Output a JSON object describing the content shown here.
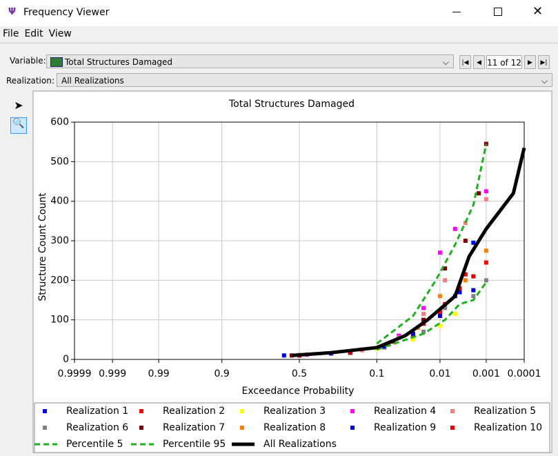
{
  "window": {
    "title": "Frequency Viewer"
  },
  "menu": [
    "File",
    "Edit",
    "View"
  ],
  "controls": {
    "variable_label": "Variable:",
    "variable": "Total Structures Damaged",
    "position": "11 of 12",
    "realization_label": "Realization:",
    "realization": "All Realizations"
  },
  "chart_data": {
    "type": "line",
    "title": "Total Structures Damaged",
    "x_label": "Exceedance Probability",
    "y_label": "Structure Count Count",
    "xscale": "normal-probability",
    "grid": true,
    "xlim": [
      0.9999,
      0.0001
    ],
    "xticks": [
      0.9999,
      0.999,
      0.99,
      0.9,
      0.5,
      0.1,
      0.01,
      0.001,
      0.0001
    ],
    "ylim": [
      0,
      600
    ],
    "yticks": [
      0,
      100,
      200,
      300,
      400,
      500,
      600
    ],
    "series": [
      {
        "name": "Realization 1",
        "color": "#0000ff",
        "mark": "square",
        "x": [
          0.6,
          0.3,
          0.1,
          0.03,
          0.01,
          0.004,
          0.002
        ],
        "values": [
          10,
          15,
          28,
          55,
          115,
          170,
          295
        ]
      },
      {
        "name": "Realization 2",
        "color": "#ff0000",
        "mark": "square",
        "x": [
          0.5,
          0.2,
          0.08,
          0.03,
          0.01,
          0.003,
          0.001
        ],
        "values": [
          11,
          18,
          35,
          60,
          120,
          215,
          245
        ]
      },
      {
        "name": "Realization 3",
        "color": "#ffff00",
        "mark": "square",
        "x": [
          0.5,
          0.2,
          0.1,
          0.03,
          0.01,
          0.005
        ],
        "values": [
          10,
          16,
          27,
          50,
          85,
          115
        ]
      },
      {
        "name": "Realization 4",
        "color": "#ff00ff",
        "mark": "square",
        "x": [
          0.45,
          0.15,
          0.05,
          0.02,
          0.01,
          0.005,
          0.001
        ],
        "values": [
          12,
          25,
          60,
          130,
          270,
          330,
          425
        ]
      },
      {
        "name": "Realization 5",
        "color": "#f08080",
        "mark": "square",
        "x": [
          0.5,
          0.15,
          0.05,
          0.02,
          0.008,
          0.003,
          0.001
        ],
        "values": [
          11,
          23,
          55,
          115,
          200,
          345,
          405
        ]
      },
      {
        "name": "Realization 6",
        "color": "#808080",
        "mark": "square",
        "x": [
          0.5,
          0.2,
          0.08,
          0.02,
          0.008,
          0.002,
          0.001
        ],
        "values": [
          10,
          17,
          30,
          70,
          130,
          160,
          200
        ]
      },
      {
        "name": "Realization 7",
        "color": "#800000",
        "mark": "square",
        "x": [
          0.55,
          0.2,
          0.06,
          0.02,
          0.008,
          0.003,
          0.0015,
          0.001
        ],
        "values": [
          10,
          20,
          45,
          100,
          230,
          300,
          420,
          545
        ]
      },
      {
        "name": "Realization 8",
        "color": "#ff8000",
        "mark": "square",
        "x": [
          0.5,
          0.2,
          0.07,
          0.025,
          0.01,
          0.003,
          0.001
        ],
        "values": [
          10,
          18,
          40,
          80,
          160,
          200,
          275
        ]
      },
      {
        "name": "Realization 9",
        "color": "#0000cc",
        "mark": "square",
        "x": [
          0.5,
          0.2,
          0.08,
          0.03,
          0.01,
          0.005,
          0.002
        ],
        "values": [
          10,
          17,
          33,
          65,
          110,
          160,
          175
        ]
      },
      {
        "name": "Realization 10",
        "color": "#e00000",
        "mark": "square",
        "x": [
          0.5,
          0.2,
          0.07,
          0.02,
          0.008,
          0.004,
          0.002
        ],
        "values": [
          10,
          18,
          38,
          90,
          140,
          180,
          210
        ]
      },
      {
        "name": "Percentile 5",
        "color": "#1fb01f",
        "mark": "dashed",
        "x": [
          0.1,
          0.02,
          0.008,
          0.004,
          0.002,
          0.001
        ],
        "values": [
          25,
          65,
          100,
          140,
          150,
          195
        ]
      },
      {
        "name": "Percentile 95",
        "color": "#1fb01f",
        "mark": "dashed",
        "x": [
          0.1,
          0.03,
          0.012,
          0.005,
          0.002,
          0.001
        ],
        "values": [
          40,
          110,
          200,
          290,
          390,
          545
        ]
      },
      {
        "name": "All Realizations",
        "color": "#000000",
        "mark": "solid",
        "x": [
          0.55,
          0.3,
          0.1,
          0.04,
          0.017,
          0.005,
          0.0025,
          0.001,
          0.0002,
          0.0001
        ],
        "values": [
          10,
          17,
          30,
          60,
          100,
          160,
          260,
          330,
          420,
          535
        ]
      }
    ]
  }
}
